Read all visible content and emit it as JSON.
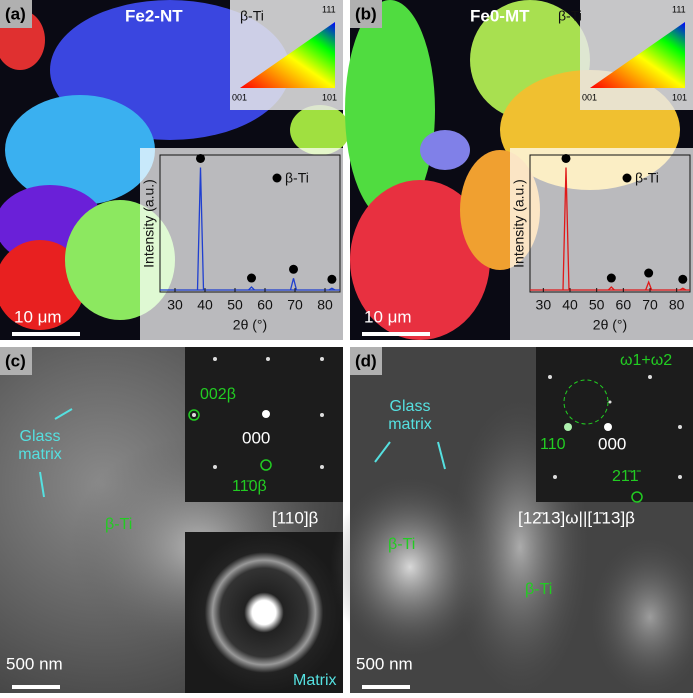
{
  "panel_a": {
    "label": "(a)",
    "sample": "Fe2-NT",
    "phase": "β-Ti",
    "ipf": {
      "top": "111",
      "left": "001",
      "right": "101"
    },
    "scale_bar": "10 μm",
    "xrd": {
      "legend": "β-Ti",
      "y_label": "Intensity (a.u.)",
      "x_label": "2θ (°)",
      "xlim": [
        25,
        85
      ],
      "ylim": [
        0,
        110
      ],
      "xticks": [
        30,
        40,
        50,
        60,
        70,
        80
      ],
      "color": "#1f3fd0",
      "peaks": [
        {
          "two_theta": 38.5,
          "intensity": 100
        },
        {
          "two_theta": 55.5,
          "intensity": 4
        },
        {
          "two_theta": 69.5,
          "intensity": 11
        },
        {
          "two_theta": 82.3,
          "intensity": 3
        }
      ]
    }
  },
  "panel_b": {
    "label": "(b)",
    "sample": "Fe0-MT",
    "phase": "β-Ti",
    "ipf": {
      "top": "111",
      "left": "001",
      "right": "101"
    },
    "scale_bar": "10 μm",
    "xrd": {
      "legend": "β-Ti",
      "y_label": "Intensity (a.u.)",
      "x_label": "2θ (°)",
      "xlim": [
        25,
        85
      ],
      "ylim": [
        0,
        110
      ],
      "xticks": [
        30,
        40,
        50,
        60,
        70,
        80
      ],
      "color": "#e01818",
      "peaks": [
        {
          "two_theta": 38.5,
          "intensity": 100
        },
        {
          "two_theta": 55.5,
          "intensity": 4
        },
        {
          "two_theta": 69.5,
          "intensity": 8
        },
        {
          "two_theta": 82.3,
          "intensity": 3
        }
      ]
    }
  },
  "panel_c": {
    "label": "(c)",
    "glass_matrix": [
      "Glass",
      "matrix"
    ],
    "phase": "β-Ti",
    "spot_a": "002β",
    "spot_center": "000",
    "spot_b": "11̄0β",
    "zone": "[110]β",
    "ring_label": "Matrix",
    "scale_bar": "500 nm"
  },
  "panel_d": {
    "label": "(d)",
    "glass_matrix": [
      "Glass",
      "matrix"
    ],
    "omega": "ω1+ω2",
    "spot_a": "110",
    "spot_center": "000",
    "spot_b": "21̄1̄",
    "zone": "[12̄13]ω||[1̄13]β",
    "phase_1": "β-Ti",
    "phase_2": "β-Ti",
    "scale_bar": "500 nm"
  }
}
